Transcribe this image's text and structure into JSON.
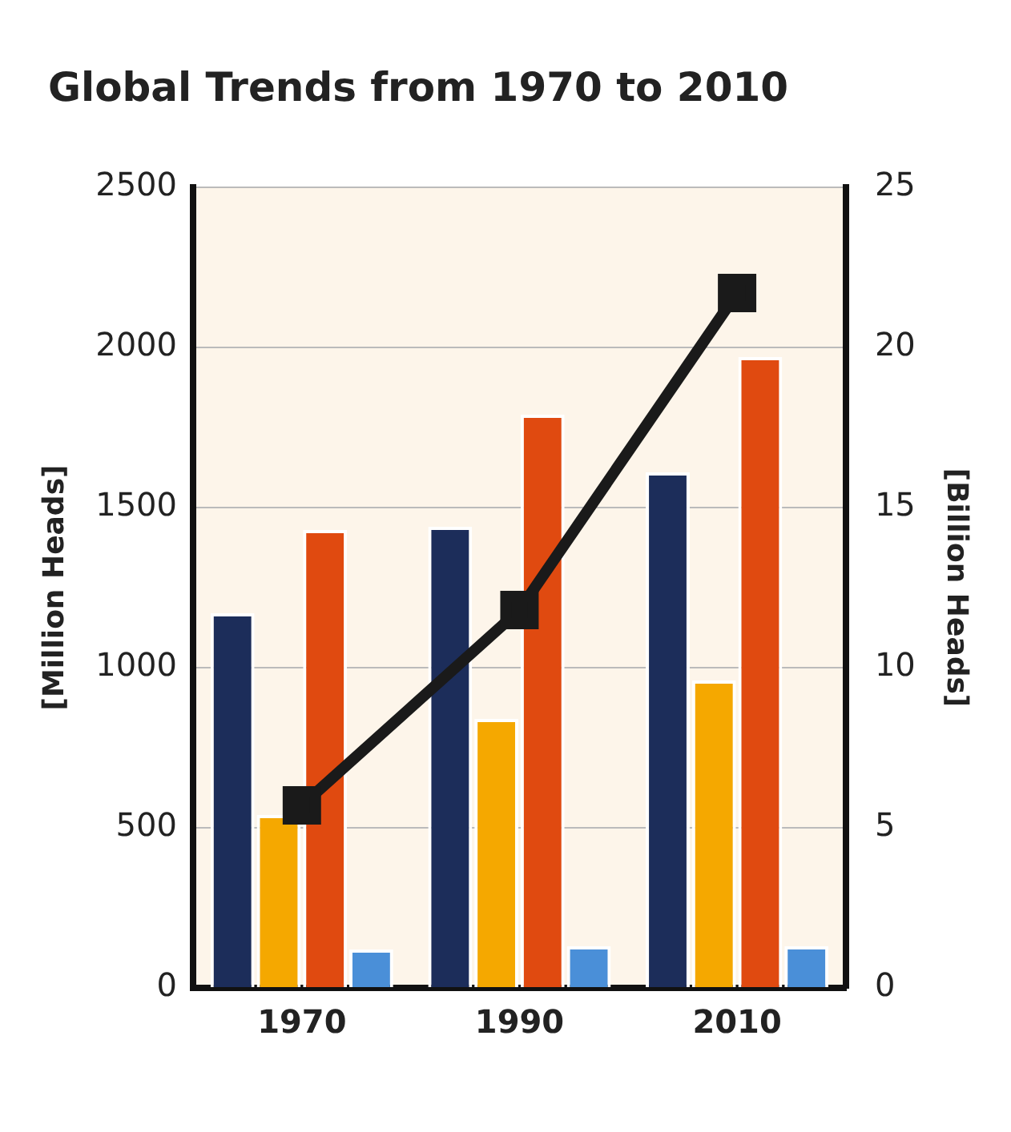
{
  "chart_data": {
    "type": "bar",
    "title": "Global Trends from 1970 to 2010",
    "ylabel": "[Million Heads]",
    "y2label": "[Billion Heads]",
    "categories": [
      "1970",
      "1990",
      "2010"
    ],
    "series": [
      {
        "color": "#1c2d5a",
        "values": [
          1170,
          1440,
          1610
        ]
      },
      {
        "color": "#f5a800",
        "values": [
          540,
          840,
          960
        ]
      },
      {
        "color": "#e04a10",
        "values": [
          1430,
          1790,
          1970
        ]
      },
      {
        "color": "#4a8fd8",
        "values": [
          120,
          130,
          130
        ]
      },
      {
        "type": "line",
        "axis": "y2",
        "color": "#1a1a1a",
        "marker": "square",
        "values": [
          5.7,
          11.8,
          21.7
        ]
      }
    ],
    "ylim": [
      0,
      2500
    ],
    "yticks": [
      0,
      500,
      1000,
      1500,
      2000,
      2500
    ],
    "y2lim": [
      0,
      25
    ],
    "y2ticks": [
      0,
      5,
      10,
      15,
      20,
      25
    ],
    "grid": "y",
    "legend": false
  }
}
